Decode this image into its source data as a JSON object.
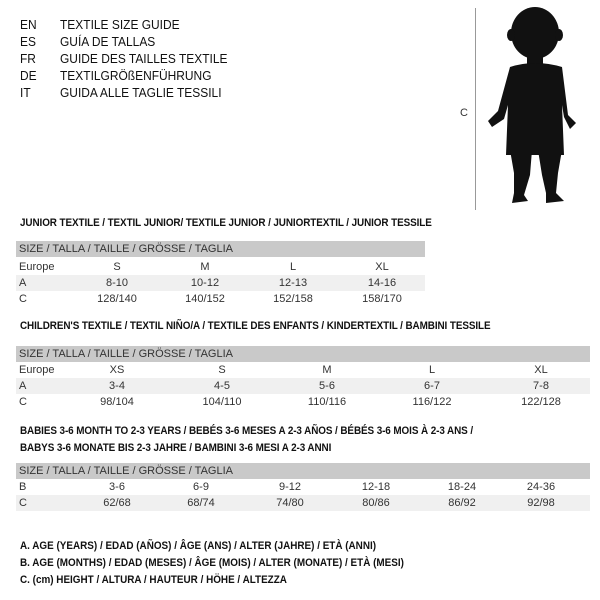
{
  "header": {
    "languages": [
      {
        "code": "EN",
        "title": "TEXTILE SIZE GUIDE"
      },
      {
        "code": "ES",
        "title": "GUÍA DE TALLAS"
      },
      {
        "code": "FR",
        "title": "GUIDE DES TAILLES TEXTILE"
      },
      {
        "code": "DE",
        "title": "TEXTILGRÖßENFÜHRUNG"
      },
      {
        "code": "IT",
        "title": "GUIDA ALLE TAGLIE TESSILI"
      }
    ],
    "figure_label": "C",
    "figure_icon": "child-silhouette"
  },
  "junior": {
    "title": "JUNIOR TEXTILE / TEXTIL JUNIOR/ TEXTILE JUNIOR / JUNIORTEXTIL / JUNIOR TESSILE",
    "header": "SIZE / TALLA / TAILLE / GRÖSSE / TAGLIA",
    "rows": [
      {
        "label": "Europe",
        "values": [
          "S",
          "M",
          "L",
          "XL"
        ]
      },
      {
        "label": "A",
        "values": [
          "8-10",
          "10-12",
          "12-13",
          "14-16"
        ]
      },
      {
        "label": "C",
        "values": [
          "128/140",
          "140/152",
          "152/158",
          "158/170"
        ]
      }
    ]
  },
  "children": {
    "title": "CHILDREN'S TEXTILE / TEXTIL NIÑO/A / TEXTILE DES ENFANTS / KINDERTEXTIL / BAMBINI TESSILE",
    "header": "SIZE / TALLA / TAILLE / GRÖSSE / TAGLIA",
    "rows": [
      {
        "label": "Europe",
        "values": [
          "XS",
          "S",
          "M",
          "L",
          "XL"
        ]
      },
      {
        "label": "A",
        "values": [
          "3-4",
          "4-5",
          "5-6",
          "6-7",
          "7-8"
        ]
      },
      {
        "label": "C",
        "values": [
          "98/104",
          "104/110",
          "110/116",
          "116/122",
          "122/128"
        ]
      }
    ]
  },
  "babies": {
    "title_line1": "BABIES 3-6 MONTH TO 2-3 YEARS / BEBÉS 3-6 MESES A 2-3 AÑOS / BÉBÉS 3-6 MOIS À 2-3 ANS /",
    "title_line2": "BABYS 3-6 MONATE BIS 2-3 JAHRE / BAMBINI 3-6 MESI A 2-3 ANNI",
    "header": "SIZE / TALLA / TAILLE / GRÖSSE / TAGLIA",
    "rows": [
      {
        "label": "B",
        "values": [
          "3-6",
          "6-9",
          "9-12",
          "12-18",
          "18-24",
          "24-36"
        ]
      },
      {
        "label": "C",
        "values": [
          "62/68",
          "68/74",
          "74/80",
          "80/86",
          "86/92",
          "92/98"
        ]
      }
    ]
  },
  "legend": [
    "A. AGE (YEARS) / EDAD (AÑOS) / ÂGE (ANS) / ALTER (JAHRE) / ETÀ (ANNI)",
    "B. AGE (MONTHS) / EDAD (MESES) / ÂGE (MOIS) / ALTER (MONATE) / ETÀ (MESI)",
    "C. (cm) HEIGHT / ALTURA / HAUTEUR / HÖHE / ALTEZZA"
  ]
}
